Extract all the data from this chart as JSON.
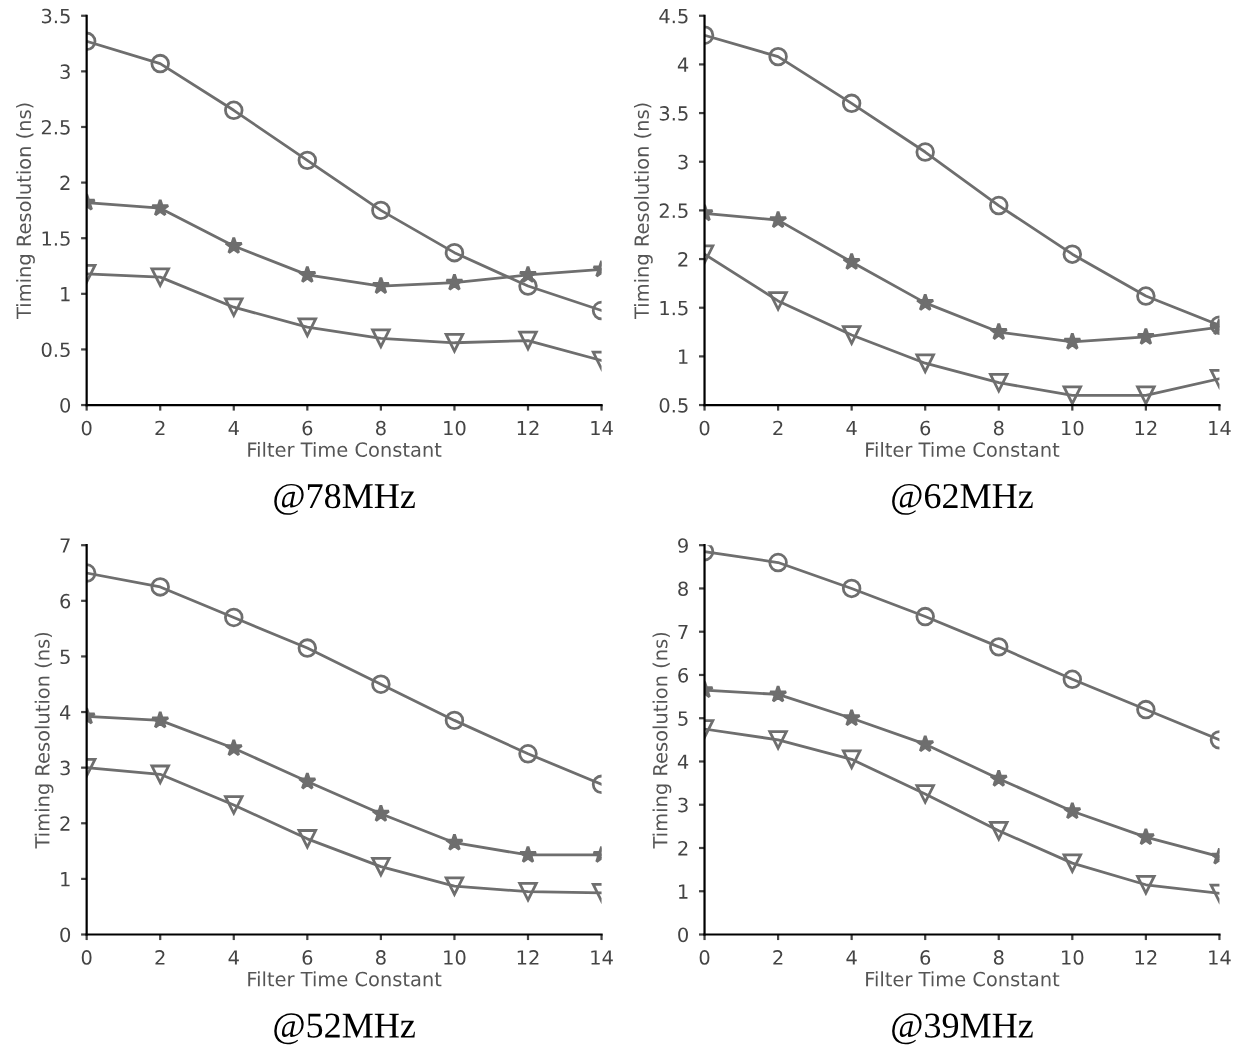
{
  "chart_data": [
    {
      "type": "line",
      "title": "@78MHz",
      "xlabel": "Filter Time Constant",
      "ylabel": "Timing Resolution (ns)",
      "x": [
        0,
        2,
        4,
        6,
        8,
        10,
        12,
        14
      ],
      "xlim": [
        0,
        14
      ],
      "xticks": [
        0,
        2,
        4,
        6,
        8,
        10,
        12,
        14
      ],
      "ylim": [
        0,
        3.5
      ],
      "yticks": [
        0,
        0.5,
        1,
        1.5,
        2,
        2.5,
        3,
        3.5
      ],
      "grid": false,
      "legend": false,
      "line_style": "solid",
      "series": [
        {
          "color": "#6e6e6e",
          "marker": "circle",
          "values": [
            3.27,
            3.07,
            2.65,
            2.2,
            1.75,
            1.37,
            1.07,
            0.85
          ]
        },
        {
          "color": "#6e6e6e",
          "marker": "star",
          "values": [
            1.82,
            1.77,
            1.43,
            1.17,
            1.07,
            1.1,
            1.17,
            1.22
          ]
        },
        {
          "color": "#6e6e6e",
          "marker": "triangle",
          "values": [
            1.18,
            1.15,
            0.88,
            0.7,
            0.6,
            0.56,
            0.58,
            0.4
          ]
        }
      ]
    },
    {
      "type": "line",
      "title": "@62MHz",
      "xlabel": "Filter Time Constant",
      "ylabel": "Timing Resolution (ns)",
      "x": [
        0,
        2,
        4,
        6,
        8,
        10,
        12,
        14
      ],
      "xlim": [
        0,
        14
      ],
      "xticks": [
        0,
        2,
        4,
        6,
        8,
        10,
        12,
        14
      ],
      "ylim": [
        0.5,
        4.5
      ],
      "yticks": [
        0.5,
        1,
        1.5,
        2,
        2.5,
        3,
        3.5,
        4,
        4.5
      ],
      "grid": false,
      "legend": false,
      "line_style": "solid",
      "series": [
        {
          "color": "#6e6e6e",
          "marker": "circle",
          "values": [
            4.3,
            4.08,
            3.6,
            3.1,
            2.55,
            2.05,
            1.62,
            1.32
          ]
        },
        {
          "color": "#6e6e6e",
          "marker": "star",
          "values": [
            2.47,
            2.4,
            1.97,
            1.55,
            1.25,
            1.15,
            1.2,
            1.3
          ]
        },
        {
          "color": "#6e6e6e",
          "marker": "triangle",
          "values": [
            2.05,
            1.57,
            1.22,
            0.93,
            0.73,
            0.6,
            0.6,
            0.77
          ]
        }
      ]
    },
    {
      "type": "line",
      "title": "@52MHz",
      "xlabel": "Filter Time Constant",
      "ylabel": "Timing Resolution (ns)",
      "x": [
        0,
        2,
        4,
        6,
        8,
        10,
        12,
        14
      ],
      "xlim": [
        0,
        14
      ],
      "xticks": [
        0,
        2,
        4,
        6,
        8,
        10,
        12,
        14
      ],
      "ylim": [
        0,
        7
      ],
      "yticks": [
        0,
        1,
        2,
        3,
        4,
        5,
        6,
        7
      ],
      "grid": false,
      "legend": false,
      "line_style": "solid",
      "series": [
        {
          "color": "#6e6e6e",
          "marker": "circle",
          "values": [
            6.5,
            6.25,
            5.7,
            5.15,
            4.5,
            3.85,
            3.25,
            2.7
          ]
        },
        {
          "color": "#6e6e6e",
          "marker": "star",
          "values": [
            3.92,
            3.85,
            3.35,
            2.75,
            2.17,
            1.65,
            1.43,
            1.43
          ]
        },
        {
          "color": "#6e6e6e",
          "marker": "triangle",
          "values": [
            3.0,
            2.88,
            2.33,
            1.72,
            1.22,
            0.87,
            0.77,
            0.75
          ]
        }
      ]
    },
    {
      "type": "line",
      "title": "@39MHz",
      "xlabel": "Filter Time Constant",
      "ylabel": "Timing Resolution (ns)",
      "x": [
        0,
        2,
        4,
        6,
        8,
        10,
        12,
        14
      ],
      "xlim": [
        0,
        14
      ],
      "xticks": [
        0,
        2,
        4,
        6,
        8,
        10,
        12,
        14
      ],
      "ylim": [
        0,
        9
      ],
      "yticks": [
        0,
        1,
        2,
        3,
        4,
        5,
        6,
        7,
        8,
        9
      ],
      "grid": false,
      "legend": false,
      "line_style": "solid",
      "series": [
        {
          "color": "#6e6e6e",
          "marker": "circle",
          "values": [
            8.85,
            8.6,
            8.0,
            7.35,
            6.65,
            5.9,
            5.2,
            4.5
          ]
        },
        {
          "color": "#6e6e6e",
          "marker": "star",
          "values": [
            5.65,
            5.55,
            5.0,
            4.4,
            3.6,
            2.85,
            2.25,
            1.8
          ]
        },
        {
          "color": "#6e6e6e",
          "marker": "triangle",
          "values": [
            4.75,
            4.5,
            4.05,
            3.25,
            2.4,
            1.65,
            1.15,
            0.95
          ]
        }
      ]
    }
  ]
}
